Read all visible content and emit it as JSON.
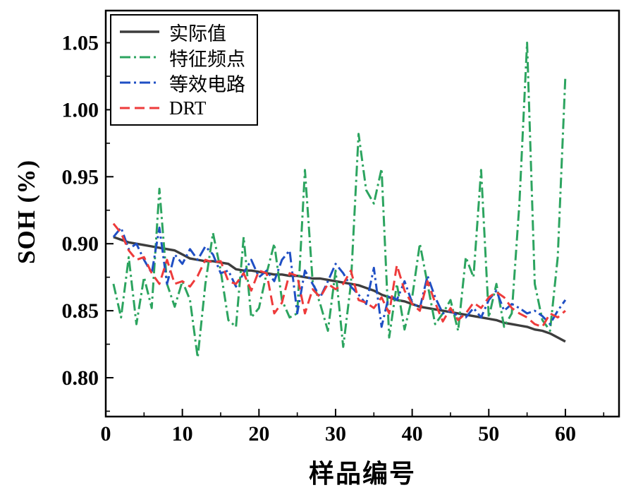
{
  "figure": {
    "background": "#ffffff"
  },
  "chart_data": {
    "type": "line",
    "title": "",
    "xlabel": "样品编号",
    "ylabel": "SOH (%)",
    "xlim": [
      0,
      67
    ],
    "ylim": [
      0.771,
      1.074
    ],
    "xticks": [
      0,
      10,
      20,
      30,
      40,
      50,
      60
    ],
    "xtick_labels": [
      "0",
      "10",
      "20",
      "30",
      "40",
      "50",
      "60"
    ],
    "yticks": [
      0.8,
      0.85,
      0.9,
      0.95,
      1.0,
      1.05
    ],
    "ytick_labels": [
      "0.80",
      "0.85",
      "0.90",
      "0.95",
      "1.00",
      "1.05"
    ],
    "x_minor_step": 5,
    "y_minor_step": 0.025,
    "grid": false,
    "legend_position": "top-left",
    "x_start": 1,
    "series": [
      {
        "name": "实际值",
        "color": "#3d3d3d",
        "dash": "solid",
        "width": 3.4,
        "values": [
          0.905,
          0.903,
          0.901,
          0.9,
          0.899,
          0.898,
          0.897,
          0.896,
          0.895,
          0.892,
          0.889,
          0.888,
          0.887,
          0.887,
          0.886,
          0.885,
          0.881,
          0.88,
          0.88,
          0.879,
          0.878,
          0.877,
          0.877,
          0.876,
          0.876,
          0.875,
          0.874,
          0.874,
          0.873,
          0.872,
          0.871,
          0.87,
          0.869,
          0.867,
          0.865,
          0.862,
          0.86,
          0.858,
          0.857,
          0.855,
          0.853,
          0.852,
          0.851,
          0.85,
          0.849,
          0.848,
          0.847,
          0.846,
          0.845,
          0.844,
          0.843,
          0.841,
          0.84,
          0.839,
          0.838,
          0.836,
          0.835,
          0.833,
          0.83,
          0.827
        ]
      },
      {
        "name": "特征频点",
        "color": "#2ca45f",
        "dash": "dashdot",
        "width": 3,
        "values": [
          0.87,
          0.845,
          0.89,
          0.84,
          0.875,
          0.852,
          0.941,
          0.87,
          0.853,
          0.872,
          0.858,
          0.815,
          0.87,
          0.908,
          0.88,
          0.843,
          0.838,
          0.905,
          0.845,
          0.852,
          0.878,
          0.9,
          0.858,
          0.845,
          0.848,
          0.955,
          0.872,
          0.855,
          0.835,
          0.88,
          0.823,
          0.87,
          0.982,
          0.94,
          0.93,
          0.956,
          0.83,
          0.87,
          0.836,
          0.86,
          0.9,
          0.87,
          0.84,
          0.848,
          0.858,
          0.835,
          0.89,
          0.875,
          0.955,
          0.845,
          0.87,
          0.838,
          0.848,
          0.93,
          1.05,
          0.87,
          0.843,
          0.835,
          0.89,
          1.025
        ]
      },
      {
        "name": "等效电路",
        "color": "#1f4fc4",
        "dash": "dashdot",
        "width": 3,
        "values": [
          0.905,
          0.912,
          0.896,
          0.9,
          0.888,
          0.878,
          0.912,
          0.87,
          0.892,
          0.885,
          0.896,
          0.888,
          0.898,
          0.892,
          0.878,
          0.88,
          0.868,
          0.878,
          0.888,
          0.875,
          0.88,
          0.872,
          0.888,
          0.895,
          0.848,
          0.88,
          0.87,
          0.86,
          0.872,
          0.885,
          0.878,
          0.868,
          0.862,
          0.855,
          0.882,
          0.838,
          0.862,
          0.858,
          0.872,
          0.856,
          0.852,
          0.876,
          0.86,
          0.848,
          0.85,
          0.846,
          0.845,
          0.852,
          0.845,
          0.858,
          0.865,
          0.85,
          0.855,
          0.852,
          0.848,
          0.85,
          0.846,
          0.84,
          0.85,
          0.858
        ]
      },
      {
        "name": "DRT",
        "color": "#ee3b3b",
        "dash": "dash",
        "width": 3,
        "values": [
          0.915,
          0.908,
          0.895,
          0.888,
          0.89,
          0.878,
          0.87,
          0.888,
          0.87,
          0.872,
          0.868,
          0.876,
          0.888,
          0.886,
          0.887,
          0.872,
          0.87,
          0.878,
          0.865,
          0.88,
          0.878,
          0.848,
          0.856,
          0.878,
          0.876,
          0.848,
          0.866,
          0.86,
          0.87,
          0.866,
          0.87,
          0.88,
          0.858,
          0.856,
          0.852,
          0.86,
          0.848,
          0.884,
          0.865,
          0.855,
          0.85,
          0.872,
          0.856,
          0.842,
          0.852,
          0.843,
          0.848,
          0.856,
          0.852,
          0.86,
          0.864,
          0.86,
          0.852,
          0.848,
          0.845,
          0.84,
          0.838,
          0.848,
          0.845,
          0.85
        ]
      }
    ]
  }
}
